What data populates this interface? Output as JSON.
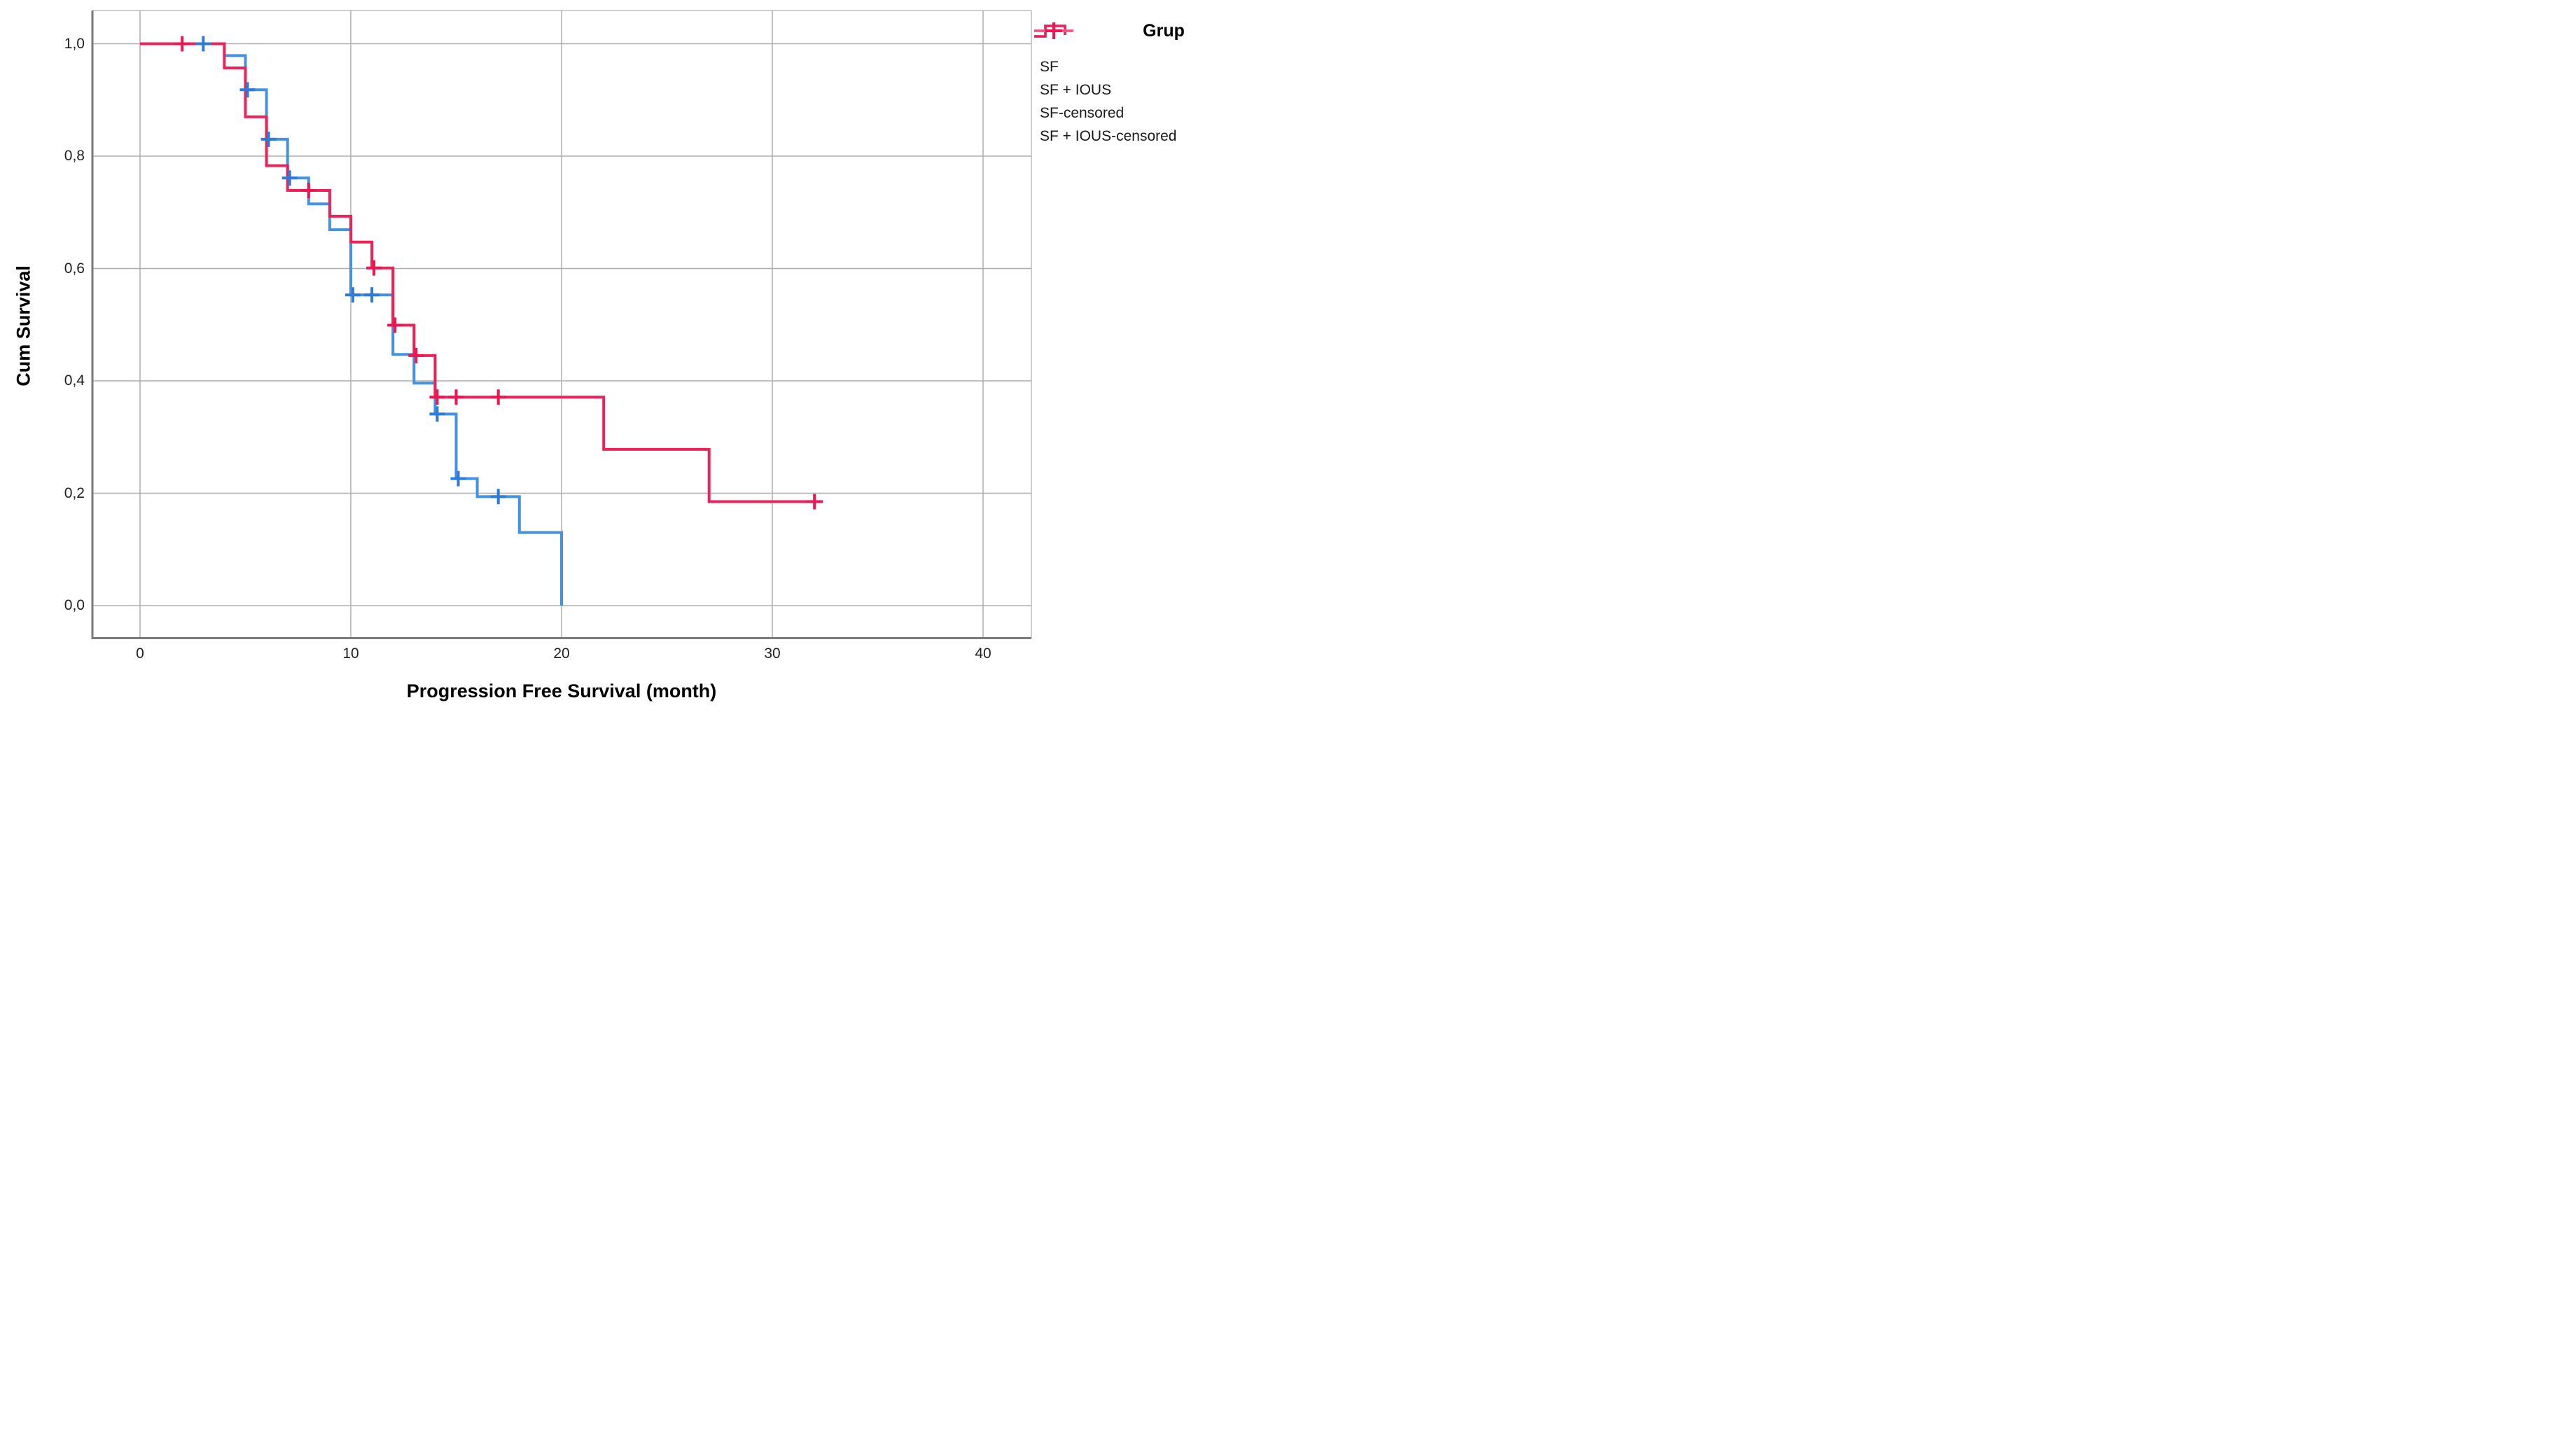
{
  "chart_data": {
    "type": "line",
    "subtype": "kaplan-meier-step",
    "xlabel": "Progression Free Survival (month)",
    "ylabel": "Cum Survival",
    "x_ticks": [
      0,
      10,
      20,
      30,
      40
    ],
    "x_tick_labels": [
      "0",
      "10",
      "20",
      "30",
      "40"
    ],
    "y_tick_values": [
      0.0,
      0.2,
      0.4,
      0.6,
      0.8,
      1.0
    ],
    "y_tick_labels": [
      "0,0",
      "0,2",
      "0,4",
      "0,6",
      "0,8",
      "1,0"
    ],
    "xlim": [
      -2.3,
      42.3
    ],
    "ylim": [
      -0.058,
      1.059
    ],
    "grid": true,
    "colors": {
      "sf_line": "#4493e2",
      "sf_cross": "#2e7cd9",
      "sf_censored_key_line": "#8cbdee",
      "sf_ious_line": "#ee2258",
      "sf_ious_cross": "#ee1550",
      "sf_ious_censored_key_line": "#f4537f",
      "gridline": "#adadad",
      "axis_line": "#7a7a7a",
      "frame_line": "#bdbdbd"
    },
    "legend": {
      "title": "Grup",
      "position": "top-right",
      "entries": [
        {
          "label": "SF",
          "key": "step",
          "color": "#4493e2"
        },
        {
          "label": "SF + IOUS",
          "key": "step",
          "color": "#ee2258"
        },
        {
          "label": "SF-censored",
          "key": "cross",
          "line_color": "#8cbdee",
          "cross_color": "#2e7cd9"
        },
        {
          "label": "SF + IOUS-censored",
          "key": "cross",
          "line_color": "#f4537f",
          "cross_color": "#ee1550"
        }
      ]
    },
    "series": [
      {
        "name": "SF",
        "color": "#4493e2",
        "cross_color": "#2e7cd9",
        "steps": [
          [
            0,
            1.0
          ],
          [
            4,
            0.979
          ],
          [
            5,
            0.918
          ],
          [
            6,
            0.83
          ],
          [
            7,
            0.761
          ],
          [
            8,
            0.715
          ],
          [
            9,
            0.669
          ],
          [
            10,
            0.553
          ],
          [
            12,
            0.447
          ],
          [
            13,
            0.396
          ],
          [
            14,
            0.341
          ],
          [
            15,
            0.226
          ],
          [
            16,
            0.194
          ],
          [
            18,
            0.13
          ]
        ],
        "end_t": 20,
        "drop_to_zero_at_end": true,
        "censored": [
          [
            3,
            1.0
          ],
          [
            5.1,
            0.918
          ],
          [
            6.1,
            0.83
          ],
          [
            7.1,
            0.761
          ],
          [
            10.1,
            0.553
          ],
          [
            11,
            0.553
          ],
          [
            14.1,
            0.341
          ],
          [
            15.1,
            0.226
          ],
          [
            17,
            0.194
          ]
        ]
      },
      {
        "name": "SF + IOUS",
        "color": "#ee2258",
        "cross_color": "#ee1550",
        "steps": [
          [
            0,
            1.0
          ],
          [
            4,
            0.957
          ],
          [
            5,
            0.87
          ],
          [
            6,
            0.783
          ],
          [
            7,
            0.739
          ],
          [
            9,
            0.693
          ],
          [
            10,
            0.647
          ],
          [
            11,
            0.601
          ],
          [
            12,
            0.499
          ],
          [
            13,
            0.445
          ],
          [
            14,
            0.371
          ],
          [
            22,
            0.278
          ],
          [
            27,
            0.185
          ]
        ],
        "end_t": 32.4,
        "drop_to_zero_at_end": false,
        "censored": [
          [
            2,
            1.0
          ],
          [
            8,
            0.739
          ],
          [
            11.1,
            0.601
          ],
          [
            12.1,
            0.499
          ],
          [
            13.1,
            0.445
          ],
          [
            14.1,
            0.371
          ],
          [
            15,
            0.371
          ],
          [
            17,
            0.371
          ],
          [
            32,
            0.185
          ]
        ]
      }
    ]
  }
}
